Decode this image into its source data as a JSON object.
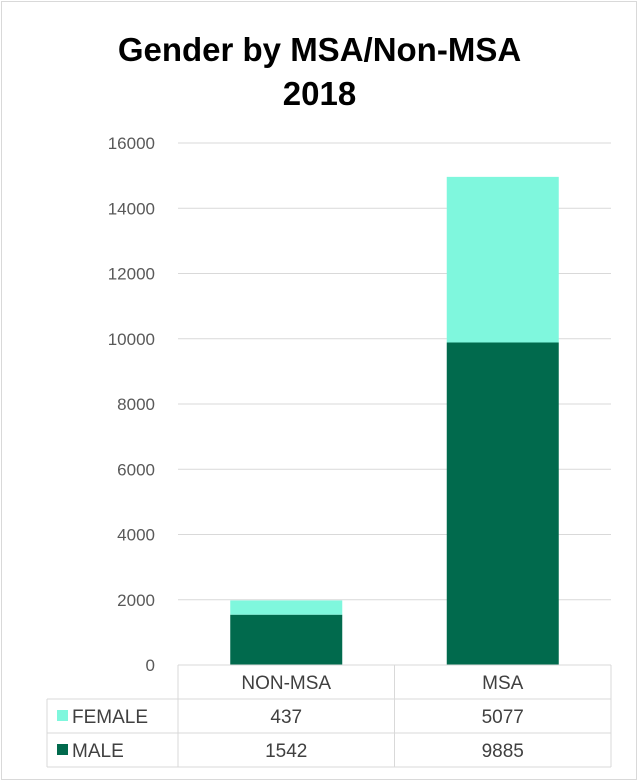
{
  "chart_data": {
    "type": "bar",
    "stacked": true,
    "title": [
      "Gender by MSA/Non-MSA",
      "2018"
    ],
    "categories": [
      "NON-MSA",
      "MSA"
    ],
    "series": [
      {
        "name": "FEMALE",
        "values": [
          437,
          5077
        ],
        "color": "#7ff7dd"
      },
      {
        "name": "MALE",
        "values": [
          1542,
          9885
        ],
        "color": "#016a4d"
      }
    ],
    "ylim": [
      0,
      16000
    ],
    "yticks": [
      0,
      2000,
      4000,
      6000,
      8000,
      10000,
      12000,
      14000,
      16000
    ],
    "grid": true,
    "legend": "data-table",
    "data_table": true
  }
}
